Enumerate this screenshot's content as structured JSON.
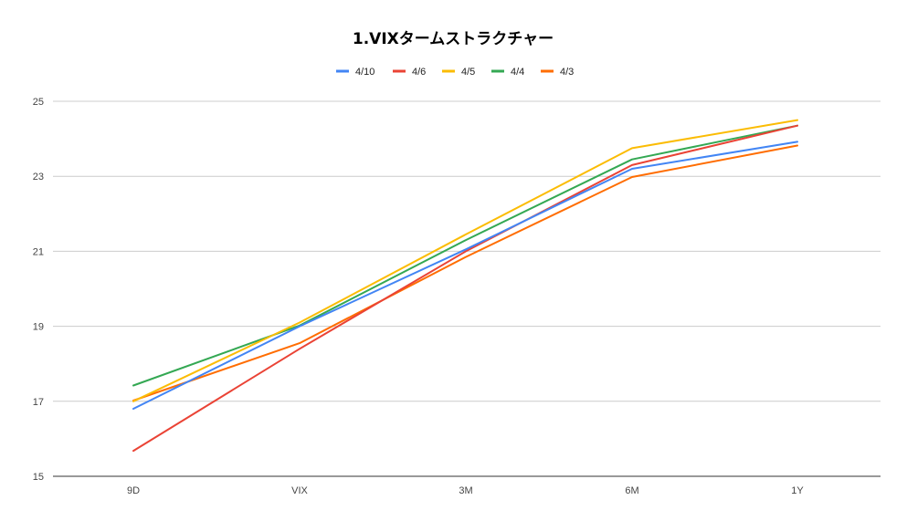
{
  "chart_data": {
    "type": "line",
    "title": "1.VIXタームストラクチャー",
    "categories": [
      "9D",
      "VIX",
      "3M",
      "6M",
      "1Y"
    ],
    "series": [
      {
        "name": "4/10",
        "color": "#4285f4",
        "values": [
          16.8,
          19.0,
          21.05,
          23.2,
          23.92
        ]
      },
      {
        "name": "4/6",
        "color": "#ea4335",
        "values": [
          15.68,
          18.4,
          21.0,
          23.3,
          24.35
        ]
      },
      {
        "name": "4/5",
        "color": "#fbbc04",
        "values": [
          17.0,
          19.1,
          21.45,
          23.75,
          24.5
        ]
      },
      {
        "name": "4/4",
        "color": "#34a853",
        "values": [
          17.42,
          19.02,
          21.3,
          23.45,
          24.35
        ]
      },
      {
        "name": "4/3",
        "color": "#ff6d01",
        "values": [
          17.02,
          18.55,
          20.85,
          22.98,
          23.82
        ]
      }
    ],
    "ylim": [
      15,
      25
    ],
    "yticks": [
      15,
      17,
      19,
      21,
      23,
      25
    ],
    "grid": true,
    "legend_position": "top-center"
  }
}
